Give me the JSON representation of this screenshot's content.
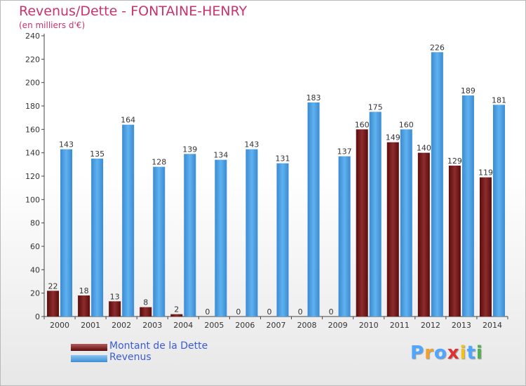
{
  "title": "Revenus/Dette - FONTAINE-HENRY",
  "subtitle": "(en milliers d'€)",
  "chart_data": {
    "type": "bar",
    "categories": [
      "2000",
      "2001",
      "2002",
      "2003",
      "2004",
      "2005",
      "2006",
      "2007",
      "2008",
      "2009",
      "2010",
      "2011",
      "2012",
      "2013",
      "2014"
    ],
    "series": [
      {
        "name": "Montant de la Dette",
        "color": "#6e1313",
        "values": [
          22,
          18,
          13,
          8,
          2,
          0,
          0,
          0,
          0,
          0,
          160,
          149,
          140,
          129,
          119
        ]
      },
      {
        "name": "Revenus",
        "color": "#4a9fe0",
        "values": [
          143,
          135,
          164,
          128,
          139,
          134,
          143,
          131,
          183,
          137,
          175,
          160,
          226,
          189,
          181
        ]
      }
    ],
    "yticks": [
      0,
      20,
      40,
      60,
      80,
      100,
      120,
      140,
      160,
      180,
      200,
      220,
      240
    ],
    "ylim": [
      0,
      240
    ],
    "grid": false,
    "legend_position": "bottom-left"
  },
  "legend": {
    "debt_label": "Montant de la Dette",
    "revenue_label": "Revenus"
  },
  "brand": {
    "letters": [
      "P",
      "r",
      "o",
      "x",
      "i",
      "t",
      "i"
    ],
    "colors": [
      "#4da6ff",
      "#f0a030",
      "#4da6ff",
      "#e03030",
      "#f0c020",
      "#4da6ff",
      "#50b050"
    ]
  }
}
